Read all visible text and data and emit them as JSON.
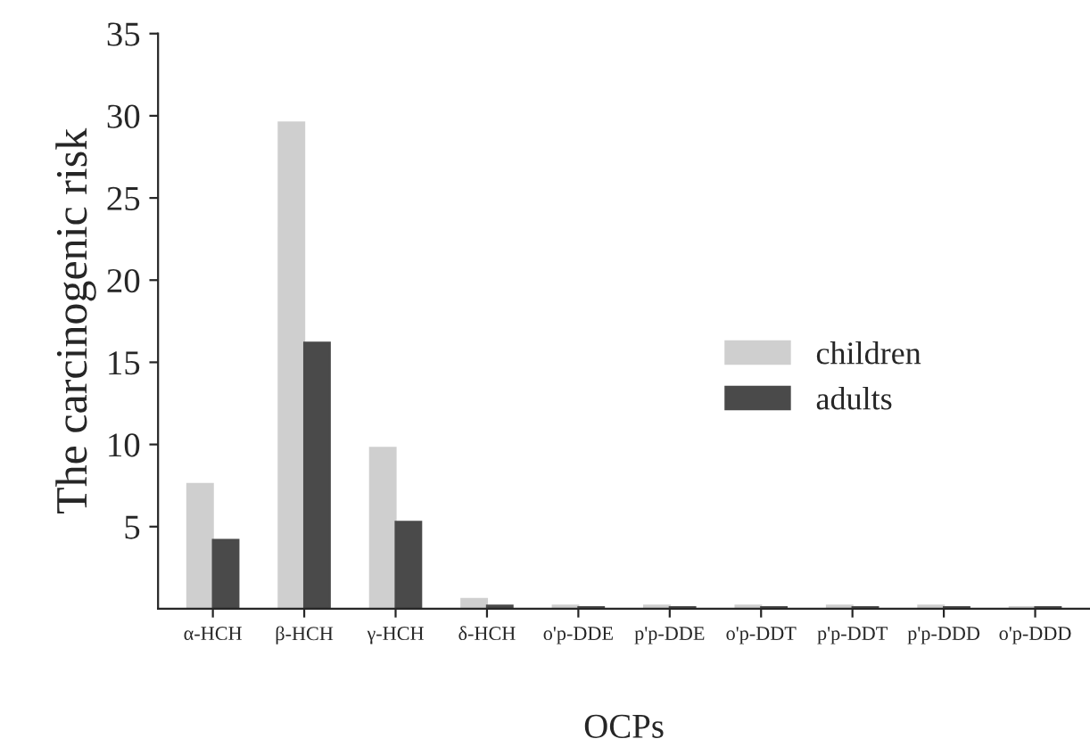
{
  "chart_data": {
    "type": "bar",
    "xlabel": "OCPs",
    "ylabel": "The carcinogenic risk",
    "categories": [
      "α-HCH",
      "β-HCH",
      "γ-HCH",
      "δ-HCH",
      "o'p-DDE",
      "p'p-DDE",
      "o'p-DDT",
      "p'p-DDT",
      "p'p-DDD",
      "o'p-DDD"
    ],
    "series": [
      {
        "name": "children",
        "color": "#cfcfcf",
        "values": [
          7.6,
          29.6,
          9.8,
          0.6,
          0.2,
          0.2,
          0.2,
          0.2,
          0.2,
          0.1
        ]
      },
      {
        "name": "adults",
        "color": "#4a4a4a",
        "values": [
          4.2,
          16.2,
          5.3,
          0.2,
          0.1,
          0.1,
          0.1,
          0.1,
          0.1,
          0.1
        ]
      }
    ],
    "ylim": [
      0,
      35
    ],
    "yticks": [
      5,
      10,
      15,
      20,
      25,
      30,
      35
    ],
    "grid": false,
    "legend": "right"
  }
}
